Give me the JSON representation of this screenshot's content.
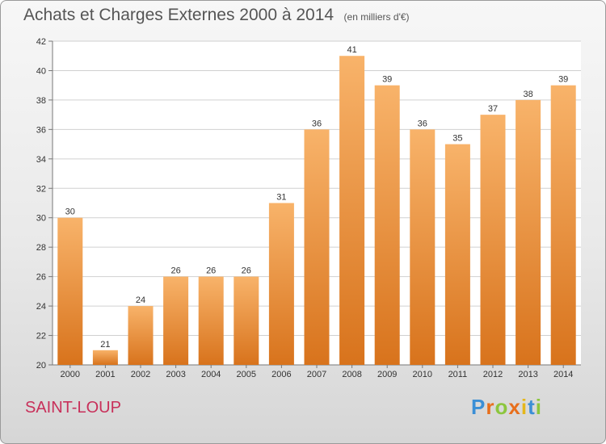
{
  "header": {
    "title": "Achats et Charges Externes 2000 à 2014",
    "subtitle": "(en milliers d'€)"
  },
  "footer": {
    "place": "SAINT-LOUP",
    "logo": "Proxiti"
  },
  "colors": {
    "bar": "#f2923a",
    "bar_light": "#f8b36a",
    "bar_dark": "#d8731c",
    "grid": "#d0d0d0"
  },
  "chart_data": {
    "type": "bar",
    "categories": [
      "2000",
      "2001",
      "2002",
      "2003",
      "2004",
      "2005",
      "2006",
      "2007",
      "2008",
      "2009",
      "2010",
      "2011",
      "2012",
      "2013",
      "2014"
    ],
    "values": [
      30,
      21,
      24,
      26,
      26,
      26,
      31,
      36,
      41,
      39,
      36,
      35,
      37,
      38,
      39
    ],
    "ylim": [
      20,
      42
    ],
    "yticks": [
      20,
      22,
      24,
      26,
      28,
      30,
      32,
      34,
      36,
      38,
      40,
      42
    ],
    "grid": true
  }
}
